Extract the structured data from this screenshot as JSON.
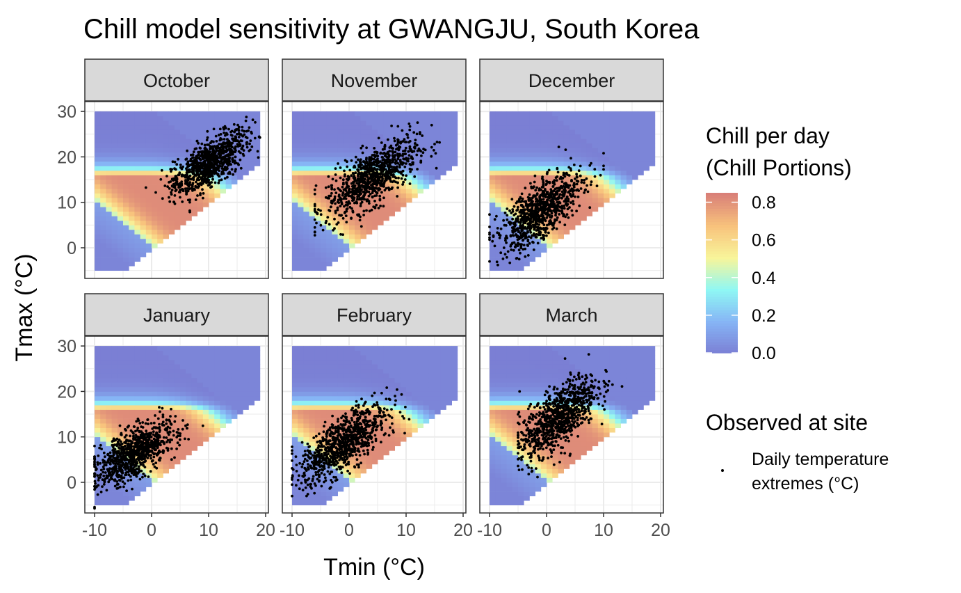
{
  "chart_data": {
    "type": "heatmap",
    "title": "Chill model sensitivity at GWANGJU, South Korea",
    "xlabel": "Tmin (°C)",
    "ylabel": "Tmax (°C)",
    "xlim": [
      -10,
      20
    ],
    "ylim": [
      -5,
      30
    ],
    "x_ticks": [
      "-10",
      "0",
      "10",
      "20"
    ],
    "y_ticks": [
      "0",
      "10",
      "20",
      "30"
    ],
    "grid": true,
    "panels": [
      {
        "month": "October",
        "obs": {
          "tmin_mean": 10,
          "tmin_sd": 3.2,
          "tmin_range": [
            -1,
            19
          ],
          "tmax_offset": 11,
          "slope": 0.75,
          "tmax_sd": 2.6
        }
      },
      {
        "month": "November",
        "obs": {
          "tmin_mean": 4,
          "tmin_sd": 4.0,
          "tmin_range": [
            -6,
            17
          ],
          "tmax_offset": 12.5,
          "slope": 0.75,
          "tmax_sd": 3.0
        }
      },
      {
        "month": "December",
        "obs": {
          "tmin_mean": -1,
          "tmin_sd": 3.6,
          "tmin_range": [
            -10,
            10
          ],
          "tmax_offset": 9,
          "slope": 0.8,
          "tmax_sd": 3.0
        }
      },
      {
        "month": "January",
        "obs": {
          "tmin_mean": -3,
          "tmin_sd": 3.3,
          "tmin_range": [
            -10,
            9
          ],
          "tmax_offset": 8.5,
          "slope": 0.7,
          "tmax_sd": 2.6
        }
      },
      {
        "month": "February",
        "obs": {
          "tmin_mean": -1,
          "tmin_sd": 3.8,
          "tmin_range": [
            -10,
            12
          ],
          "tmax_offset": 9.5,
          "slope": 0.8,
          "tmax_sd": 3.0
        }
      },
      {
        "month": "March",
        "obs": {
          "tmin_mean": 2,
          "tmin_sd": 3.4,
          "tmin_range": [
            -5,
            15
          ],
          "tmax_offset": 12.5,
          "slope": 0.9,
          "tmax_sd": 3.3
        }
      }
    ],
    "fill_scale": {
      "title_line1": "Chill per day",
      "title_line2": "(Chill Portions)",
      "breaks": [
        "0.0",
        "0.2",
        "0.4",
        "0.6",
        "0.8"
      ],
      "min": 0,
      "max": 0.85,
      "colors": [
        "#7b7fd4",
        "#86b4f5",
        "#8ff7f4",
        "#f8f59a",
        "#f8c27c",
        "#d98078"
      ]
    },
    "point_legend": {
      "title": "Observed at site",
      "label_line1": "Daily temperature",
      "label_line2": "extremes (°C)",
      "color": "#000000"
    }
  }
}
